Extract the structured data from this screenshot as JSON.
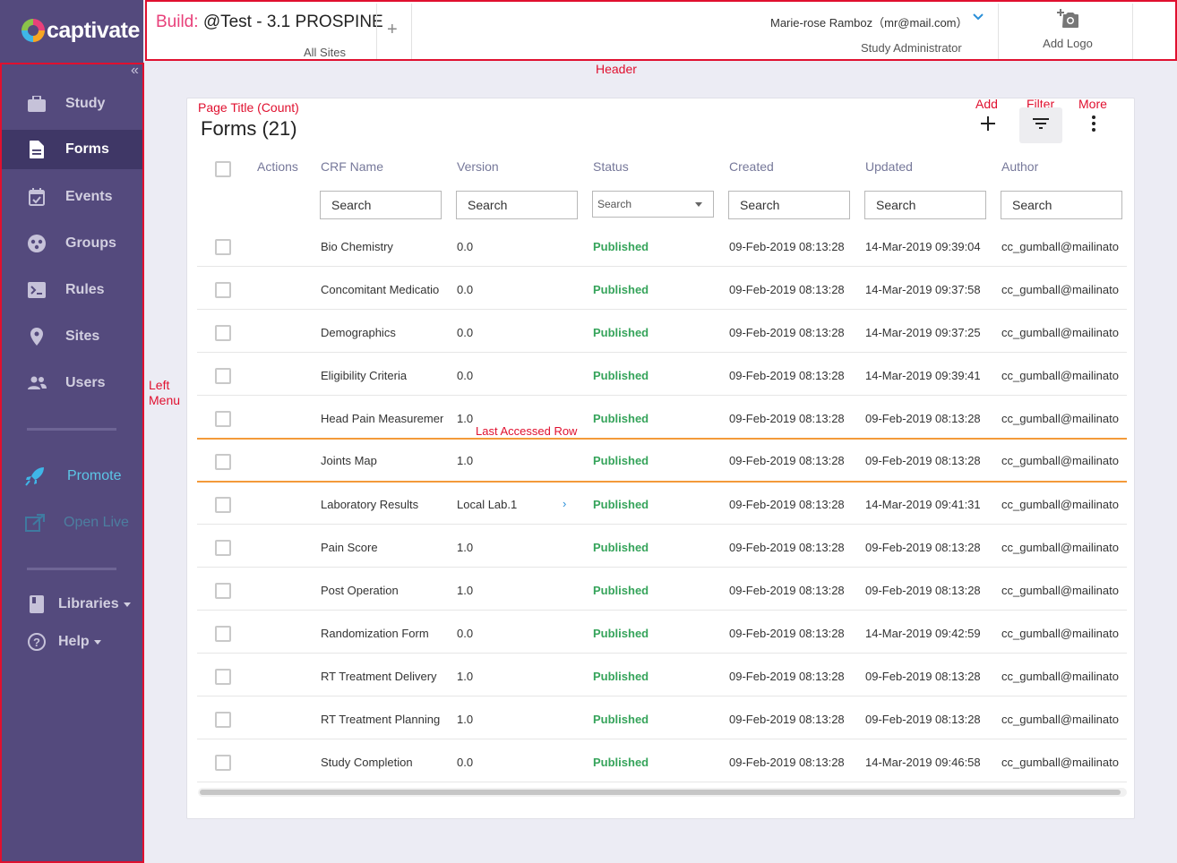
{
  "app": {
    "logo_text": "captivate"
  },
  "header": {
    "build_label": "Build:",
    "build_name": "@Test - 3.1 PROSPINE",
    "site": "All Sites",
    "add_symbol": "+",
    "user_name": "Marie-rose Ramboz（mr@mail.com）",
    "user_role": "Study Administrator",
    "add_logo_label": "Add Logo"
  },
  "sidebar": {
    "items": [
      {
        "label": "Study",
        "icon": "briefcase-icon",
        "active": false
      },
      {
        "label": "Forms",
        "icon": "document-icon",
        "active": true
      },
      {
        "label": "Events",
        "icon": "calendar-icon",
        "active": false
      },
      {
        "label": "Groups",
        "icon": "groups-icon",
        "active": false
      },
      {
        "label": "Rules",
        "icon": "rules-icon",
        "active": false
      },
      {
        "label": "Sites",
        "icon": "location-pin-icon",
        "active": false
      },
      {
        "label": "Users",
        "icon": "users-icon",
        "active": false
      }
    ],
    "promote_label": "Promote",
    "open_live_label": "Open Live",
    "libraries_label": "Libraries",
    "help_label": "Help"
  },
  "annotations": {
    "header": "Header",
    "left_menu_1": "Left",
    "left_menu_2": "Menu",
    "page_title": "Page Title (Count)",
    "add": "Add",
    "filter": "Filter",
    "more": "More",
    "last_accessed": "Last Accessed Row"
  },
  "page": {
    "title": "Forms (21)"
  },
  "table": {
    "columns": [
      "Actions",
      "CRF Name",
      "Version",
      "Status",
      "Created",
      "Updated",
      "Author"
    ],
    "search_placeholder": "Search",
    "status_filter_placeholder": "Search",
    "rows": [
      {
        "name": "Bio Chemistry",
        "version": "0.0",
        "status": "Published",
        "created": "09-Feb-2019 08:13:28",
        "updated": "14-Mar-2019 09:39:04",
        "author": "cc_gumball@mailinato"
      },
      {
        "name": "Concomitant Medicatio",
        "version": "0.0",
        "status": "Published",
        "created": "09-Feb-2019 08:13:28",
        "updated": "14-Mar-2019 09:37:58",
        "author": "cc_gumball@mailinato"
      },
      {
        "name": "Demographics",
        "version": "0.0",
        "status": "Published",
        "created": "09-Feb-2019 08:13:28",
        "updated": "14-Mar-2019 09:37:25",
        "author": "cc_gumball@mailinato"
      },
      {
        "name": "Eligibility Criteria",
        "version": "0.0",
        "status": "Published",
        "created": "09-Feb-2019 08:13:28",
        "updated": "14-Mar-2019 09:39:41",
        "author": "cc_gumball@mailinato"
      },
      {
        "name": "Head Pain Measuremen",
        "version": "1.0",
        "status": "Published",
        "created": "09-Feb-2019 08:13:28",
        "updated": "09-Feb-2019 08:13:28",
        "author": "cc_gumball@mailinato"
      },
      {
        "name": "Joints Map",
        "version": "1.0",
        "status": "Published",
        "created": "09-Feb-2019 08:13:28",
        "updated": "09-Feb-2019 08:13:28",
        "author": "cc_gumball@mailinato",
        "last_accessed": true
      },
      {
        "name": "Laboratory Results",
        "version": "Local Lab.1",
        "status": "Published",
        "created": "09-Feb-2019 08:13:28",
        "updated": "14-Mar-2019 09:41:31",
        "author": "cc_gumball@mailinato",
        "version_chevron": "›"
      },
      {
        "name": "Pain Score",
        "version": "1.0",
        "status": "Published",
        "created": "09-Feb-2019 08:13:28",
        "updated": "09-Feb-2019 08:13:28",
        "author": "cc_gumball@mailinato"
      },
      {
        "name": "Post Operation",
        "version": "1.0",
        "status": "Published",
        "created": "09-Feb-2019 08:13:28",
        "updated": "09-Feb-2019 08:13:28",
        "author": "cc_gumball@mailinato"
      },
      {
        "name": "Randomization Form",
        "version": "0.0",
        "status": "Published",
        "created": "09-Feb-2019 08:13:28",
        "updated": "14-Mar-2019 09:42:59",
        "author": "cc_gumball@mailinato"
      },
      {
        "name": "RT Treatment Delivery",
        "version": "1.0",
        "status": "Published",
        "created": "09-Feb-2019 08:13:28",
        "updated": "09-Feb-2019 08:13:28",
        "author": "cc_gumball@mailinato"
      },
      {
        "name": "RT Treatment Planning",
        "version": "1.0",
        "status": "Published",
        "created": "09-Feb-2019 08:13:28",
        "updated": "09-Feb-2019 08:13:28",
        "author": "cc_gumball@mailinato"
      },
      {
        "name": "Study Completion",
        "version": "0.0",
        "status": "Published",
        "created": "09-Feb-2019 08:13:28",
        "updated": "14-Mar-2019 09:46:58",
        "author": "cc_gumball@mailinato"
      }
    ]
  },
  "colors": {
    "sidebar_bg": "#544a7d",
    "sidebar_active_bg": "#3f3766",
    "status_published": "#36a45b",
    "annotation_red": "#e0102f",
    "last_accessed_orange": "#f39a3a",
    "build_pink": "#e8407a"
  }
}
